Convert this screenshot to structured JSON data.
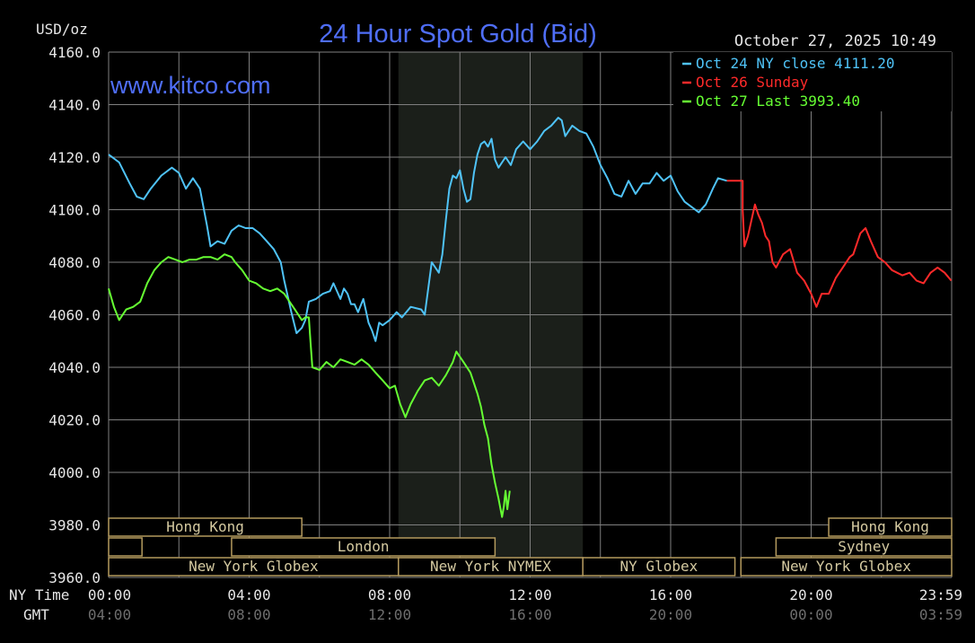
{
  "header": {
    "unit_label": "USD/oz",
    "title": "24 Hour Spot Gold (Bid)",
    "datetime": "October 27, 2025 10:49",
    "watermark": "www.kitco.com"
  },
  "legend": [
    {
      "label": "Oct 24 NY close 4111.20",
      "color": "#4fc3f7"
    },
    {
      "label": "Oct 26 Sunday",
      "color": "#ff2a2a"
    },
    {
      "label": "Oct 27 Last 3993.40",
      "color": "#66ff33"
    }
  ],
  "axis_titles": {
    "ny_time": "NY Time",
    "gmt": "GMT"
  },
  "colors": {
    "grid": "#7f7f7f",
    "session_box": "#b49a5e",
    "session_text": "#d4c9a0",
    "tick_text": "#e6e6e6",
    "gmt_text": "#6e6e6e",
    "title": "#4f6ef7",
    "nymex_shade": "#1b1f1a"
  },
  "chart_data": {
    "type": "line",
    "ylim": [
      3960,
      4160
    ],
    "y_ticks": [
      "4160.0",
      "4140.0",
      "4120.0",
      "4100.0",
      "4080.0",
      "4060.0",
      "4040.0",
      "4020.0",
      "4000.0",
      "3980.0",
      "3960.0"
    ],
    "x_ticks_ny": [
      "00:00",
      "04:00",
      "08:00",
      "12:00",
      "16:00",
      "20:00",
      "23:59"
    ],
    "x_ticks_gmt": [
      "04:00",
      "08:00",
      "12:00",
      "16:00",
      "20:00",
      "00:00",
      "03:59"
    ],
    "nymex_hours": [
      8.25,
      13.5
    ],
    "series": [
      {
        "name": "Oct 24 NY close 4111.20",
        "color": "#4fc3f7",
        "points": [
          [
            0,
            4121
          ],
          [
            0.3,
            4118
          ],
          [
            0.6,
            4110
          ],
          [
            0.8,
            4105
          ],
          [
            1.0,
            4104
          ],
          [
            1.2,
            4108
          ],
          [
            1.5,
            4113
          ],
          [
            1.8,
            4116
          ],
          [
            2.0,
            4114
          ],
          [
            2.2,
            4108
          ],
          [
            2.4,
            4112
          ],
          [
            2.6,
            4108
          ],
          [
            2.8,
            4094
          ],
          [
            2.9,
            4086
          ],
          [
            3.1,
            4088
          ],
          [
            3.3,
            4087
          ],
          [
            3.5,
            4092
          ],
          [
            3.7,
            4094
          ],
          [
            3.9,
            4093
          ],
          [
            4.1,
            4093
          ],
          [
            4.3,
            4091
          ],
          [
            4.5,
            4088
          ],
          [
            4.7,
            4085
          ],
          [
            4.9,
            4080
          ],
          [
            5.0,
            4073
          ],
          [
            5.2,
            4061
          ],
          [
            5.35,
            4053
          ],
          [
            5.5,
            4055
          ],
          [
            5.6,
            4058
          ],
          [
            5.7,
            4065
          ],
          [
            5.9,
            4066
          ],
          [
            6.1,
            4068
          ],
          [
            6.3,
            4069
          ],
          [
            6.4,
            4072
          ],
          [
            6.6,
            4066
          ],
          [
            6.7,
            4070
          ],
          [
            6.8,
            4068
          ],
          [
            6.9,
            4064
          ],
          [
            7.0,
            4064
          ],
          [
            7.1,
            4061
          ],
          [
            7.25,
            4066
          ],
          [
            7.4,
            4057
          ],
          [
            7.5,
            4054
          ],
          [
            7.6,
            4050
          ],
          [
            7.7,
            4057
          ],
          [
            7.8,
            4056
          ],
          [
            8.0,
            4058
          ],
          [
            8.2,
            4061
          ],
          [
            8.35,
            4059
          ],
          [
            8.6,
            4063
          ],
          [
            8.9,
            4062
          ],
          [
            9.0,
            4060
          ],
          [
            9.1,
            4070
          ],
          [
            9.2,
            4080
          ],
          [
            9.4,
            4076
          ],
          [
            9.5,
            4083
          ],
          [
            9.6,
            4096
          ],
          [
            9.7,
            4108
          ],
          [
            9.8,
            4113
          ],
          [
            9.9,
            4112
          ],
          [
            10.0,
            4115
          ],
          [
            10.1,
            4108
          ],
          [
            10.2,
            4103
          ],
          [
            10.3,
            4104
          ],
          [
            10.4,
            4114
          ],
          [
            10.5,
            4121
          ],
          [
            10.6,
            4125
          ],
          [
            10.7,
            4126
          ],
          [
            10.8,
            4124
          ],
          [
            10.9,
            4127
          ],
          [
            11.0,
            4119
          ],
          [
            11.1,
            4116
          ],
          [
            11.3,
            4120
          ],
          [
            11.45,
            4117
          ],
          [
            11.6,
            4123
          ],
          [
            11.8,
            4126
          ],
          [
            12.0,
            4123
          ],
          [
            12.2,
            4126
          ],
          [
            12.4,
            4130
          ],
          [
            12.6,
            4132
          ],
          [
            12.8,
            4135
          ],
          [
            12.9,
            4134
          ],
          [
            13.0,
            4128
          ],
          [
            13.2,
            4132
          ],
          [
            13.4,
            4130
          ],
          [
            13.6,
            4129
          ],
          [
            13.8,
            4124
          ],
          [
            14.0,
            4117
          ],
          [
            14.2,
            4112
          ],
          [
            14.4,
            4106
          ],
          [
            14.6,
            4105
          ],
          [
            14.8,
            4111
          ],
          [
            15.0,
            4106
          ],
          [
            15.2,
            4110
          ],
          [
            15.4,
            4110
          ],
          [
            15.6,
            4114
          ],
          [
            15.8,
            4111
          ],
          [
            16.0,
            4113
          ],
          [
            16.2,
            4107
          ],
          [
            16.4,
            4103
          ],
          [
            16.6,
            4101
          ],
          [
            16.8,
            4099
          ],
          [
            17.0,
            4102
          ],
          [
            17.2,
            4108
          ],
          [
            17.35,
            4112
          ],
          [
            17.6,
            4111
          ]
        ]
      },
      {
        "name": "Oct 26 Sunday",
        "color": "#ff2a2a",
        "points": [
          [
            17.6,
            4111
          ],
          [
            18.05,
            4111
          ],
          [
            18.05,
            4100
          ],
          [
            18.1,
            4086
          ],
          [
            18.2,
            4090
          ],
          [
            18.3,
            4096
          ],
          [
            18.4,
            4102
          ],
          [
            18.5,
            4098
          ],
          [
            18.6,
            4095
          ],
          [
            18.7,
            4090
          ],
          [
            18.8,
            4088
          ],
          [
            18.9,
            4080
          ],
          [
            19.0,
            4078
          ],
          [
            19.2,
            4083
          ],
          [
            19.4,
            4085
          ],
          [
            19.6,
            4076
          ],
          [
            19.8,
            4073
          ],
          [
            20.0,
            4068
          ],
          [
            20.15,
            4063
          ],
          [
            20.3,
            4068
          ],
          [
            20.5,
            4068
          ],
          [
            20.7,
            4074
          ],
          [
            20.9,
            4078
          ],
          [
            21.1,
            4082
          ],
          [
            21.2,
            4083
          ],
          [
            21.4,
            4091
          ],
          [
            21.55,
            4093
          ],
          [
            21.7,
            4088
          ],
          [
            21.9,
            4082
          ],
          [
            22.1,
            4080
          ],
          [
            22.3,
            4077
          ],
          [
            22.6,
            4075
          ],
          [
            22.8,
            4076
          ],
          [
            23.0,
            4073
          ],
          [
            23.2,
            4072
          ],
          [
            23.4,
            4076
          ],
          [
            23.6,
            4078
          ],
          [
            23.8,
            4076
          ],
          [
            23.99,
            4073
          ]
        ]
      },
      {
        "name": "Oct 27 Last 3993.40",
        "color": "#66ff33",
        "points": [
          [
            0,
            4070
          ],
          [
            0.15,
            4063
          ],
          [
            0.3,
            4058
          ],
          [
            0.5,
            4062
          ],
          [
            0.7,
            4063
          ],
          [
            0.9,
            4065
          ],
          [
            1.1,
            4072
          ],
          [
            1.3,
            4077
          ],
          [
            1.5,
            4080
          ],
          [
            1.7,
            4082
          ],
          [
            1.9,
            4081
          ],
          [
            2.1,
            4080
          ],
          [
            2.3,
            4081
          ],
          [
            2.5,
            4081
          ],
          [
            2.7,
            4082
          ],
          [
            2.9,
            4082
          ],
          [
            3.1,
            4081
          ],
          [
            3.3,
            4083
          ],
          [
            3.5,
            4082
          ],
          [
            3.6,
            4080
          ],
          [
            3.8,
            4077
          ],
          [
            4.0,
            4073
          ],
          [
            4.2,
            4072
          ],
          [
            4.4,
            4070
          ],
          [
            4.6,
            4069
          ],
          [
            4.8,
            4070
          ],
          [
            5.0,
            4068
          ],
          [
            5.1,
            4066
          ],
          [
            5.3,
            4062
          ],
          [
            5.5,
            4058
          ],
          [
            5.6,
            4059
          ],
          [
            5.7,
            4059
          ],
          [
            5.75,
            4049
          ],
          [
            5.8,
            4040
          ],
          [
            6.0,
            4039
          ],
          [
            6.2,
            4042
          ],
          [
            6.4,
            4040
          ],
          [
            6.6,
            4043
          ],
          [
            6.8,
            4042
          ],
          [
            7.0,
            4041
          ],
          [
            7.2,
            4043
          ],
          [
            7.4,
            4041
          ],
          [
            7.6,
            4038
          ],
          [
            7.8,
            4035
          ],
          [
            8.0,
            4032
          ],
          [
            8.15,
            4033
          ],
          [
            8.3,
            4026
          ],
          [
            8.45,
            4021
          ],
          [
            8.6,
            4026
          ],
          [
            8.8,
            4031
          ],
          [
            9.0,
            4035
          ],
          [
            9.2,
            4036
          ],
          [
            9.4,
            4033
          ],
          [
            9.6,
            4037
          ],
          [
            9.8,
            4042
          ],
          [
            9.9,
            4046
          ],
          [
            10.1,
            4042
          ],
          [
            10.3,
            4038
          ],
          [
            10.5,
            4030
          ],
          [
            10.6,
            4025
          ],
          [
            10.7,
            4018
          ],
          [
            10.8,
            4013
          ],
          [
            10.9,
            4003
          ],
          [
            11.0,
            3996
          ],
          [
            11.1,
            3990
          ],
          [
            11.2,
            3983
          ],
          [
            11.25,
            3987
          ],
          [
            11.3,
            3993
          ],
          [
            11.35,
            3986
          ],
          [
            11.42,
            3993
          ]
        ]
      }
    ]
  },
  "sessions": [
    {
      "label": "Hong Kong",
      "start": 0.0,
      "end": 5.5,
      "row": 0
    },
    {
      "label": "",
      "start": 0.0,
      "end": 0.95,
      "row": 1
    },
    {
      "label": "London",
      "start": 3.5,
      "end": 11.0,
      "row": 1
    },
    {
      "label": "New York Globex",
      "start": 0.0,
      "end": 8.25,
      "row": 2
    },
    {
      "label": "New York NYMEX",
      "start": 8.25,
      "end": 13.5,
      "row": 2
    },
    {
      "label": "NY Globex",
      "start": 13.5,
      "end": 17.83,
      "row": 2
    },
    {
      "label": "Hong Kong",
      "start": 20.5,
      "end": 24.0,
      "row": 0
    },
    {
      "label": "Sydney",
      "start": 19.0,
      "end": 24.0,
      "row": 1
    },
    {
      "label": "New York Globex",
      "start": 18.0,
      "end": 24.0,
      "row": 2
    }
  ]
}
